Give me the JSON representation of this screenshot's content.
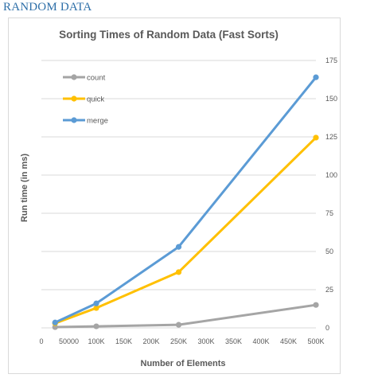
{
  "page": {
    "heading": "RANDOM DATA"
  },
  "chart_data": {
    "type": "line",
    "title": "Sorting Times of Random Data (Fast Sorts)",
    "xlabel": "Number of Elements",
    "ylabel": "Run time (in ms)",
    "x_tick_labels": [
      "0",
      "50000",
      "100K",
      "150K",
      "200K",
      "250K",
      "300K",
      "350K",
      "400K",
      "450K",
      "500K"
    ],
    "x_ticks": [
      0,
      50000,
      100000,
      150000,
      200000,
      250000,
      300000,
      350000,
      400000,
      450000,
      500000
    ],
    "y_ticks": [
      0,
      25,
      50,
      75,
      100,
      125,
      150,
      175
    ],
    "xlim": [
      0,
      500000
    ],
    "ylim": [
      0,
      175
    ],
    "y_axis_side": "right",
    "grid": "horizontal",
    "legend_position": "top-left",
    "x": [
      25000,
      100000,
      250000,
      500000
    ],
    "series": [
      {
        "name": "count",
        "color": "#a5a5a5",
        "values": [
          0.5,
          1,
          2,
          15
        ]
      },
      {
        "name": "quick",
        "color": "#ffc000",
        "values": [
          3,
          13,
          36.5,
          124.5
        ]
      },
      {
        "name": "merge",
        "color": "#5b9bd5",
        "values": [
          3.5,
          16,
          53,
          164
        ]
      }
    ]
  }
}
